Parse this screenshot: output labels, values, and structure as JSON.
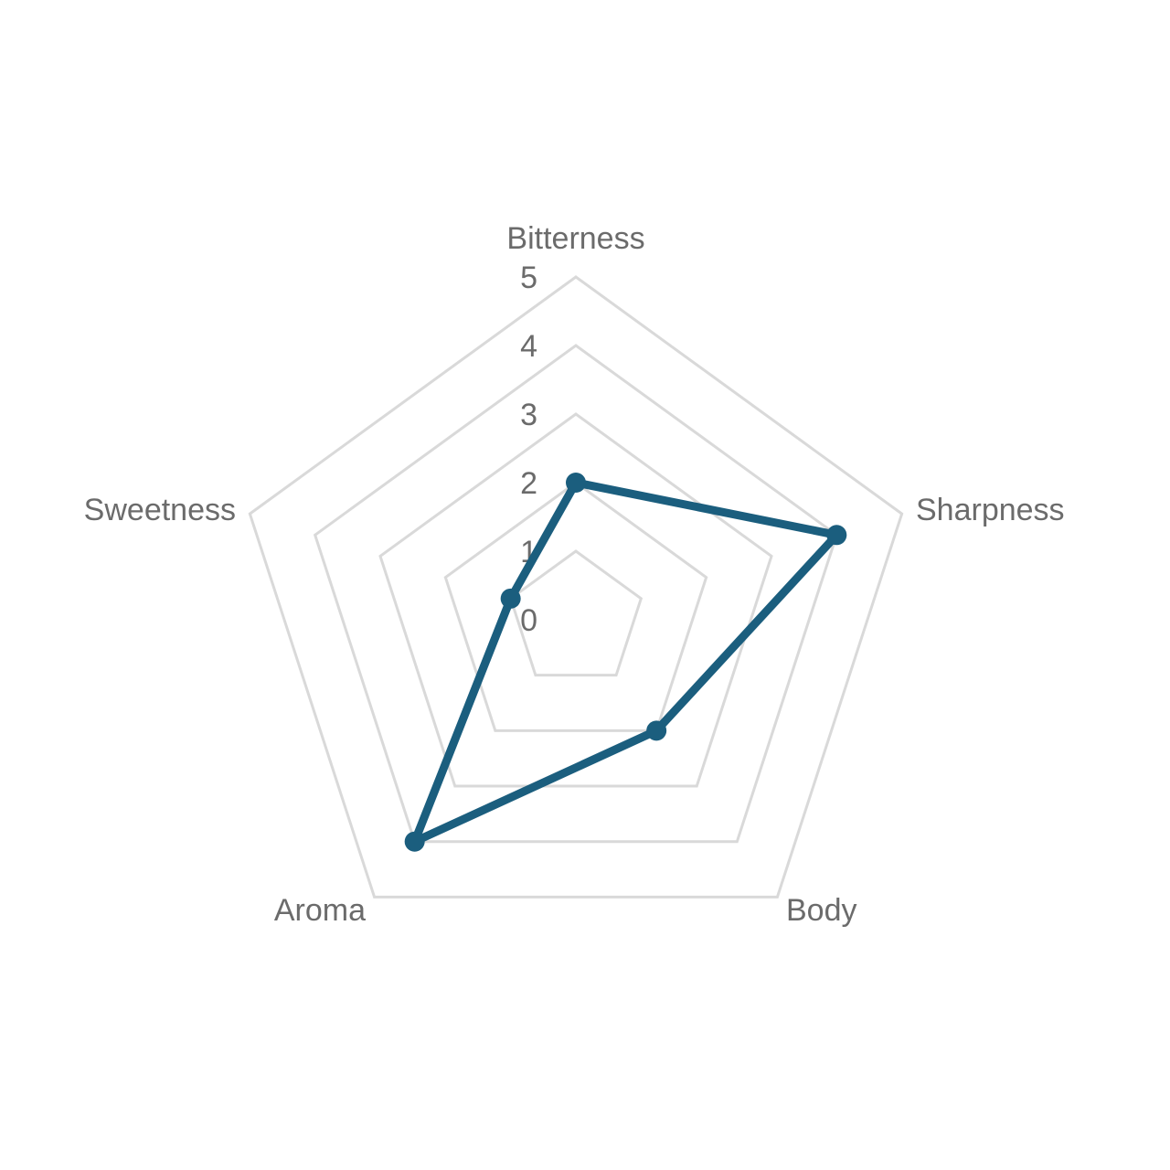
{
  "chart_data": {
    "type": "radar",
    "title": "",
    "categories": [
      "Bitterness",
      "Sharpness",
      "Body",
      "Aroma",
      "Sweetness"
    ],
    "series": [
      {
        "values": [
          2,
          4,
          2,
          4,
          1
        ],
        "color": "#1b5e7e"
      }
    ],
    "rlim": [
      0,
      5
    ],
    "ticks": [
      "0",
      "1",
      "2",
      "3",
      "4",
      "5"
    ],
    "grid": true,
    "grid_color": "#d9d9d9",
    "legend": "none"
  }
}
